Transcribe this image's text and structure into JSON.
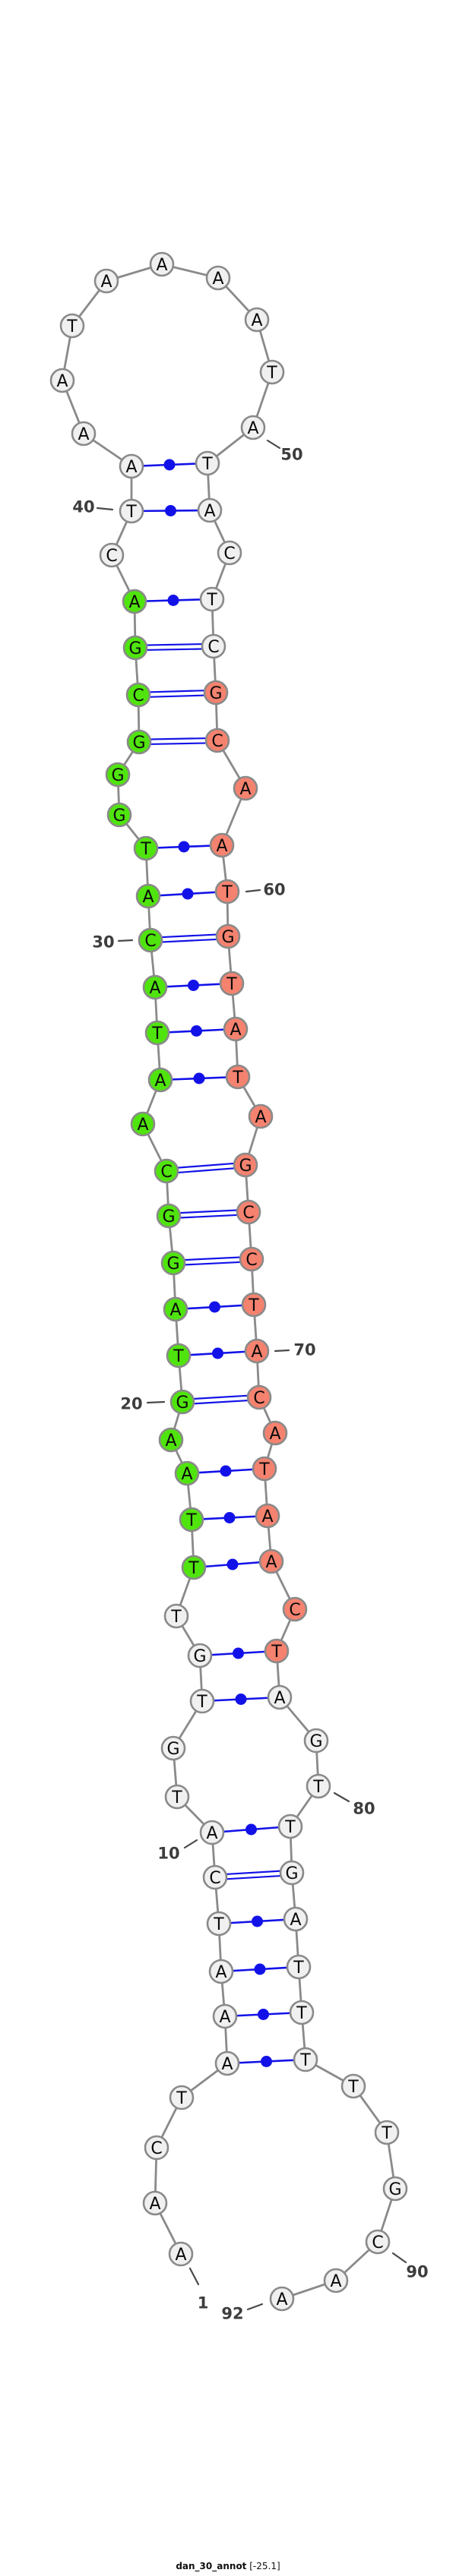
{
  "title": {
    "name": "dan_30_annot",
    "energy": "[-25.1]"
  },
  "colors": {
    "plain": "#f0f0f0",
    "green": "#50e40e",
    "red": "#f4826f",
    "outline": "#8a8a8a",
    "backbone": "#8a8a8a",
    "pair_blue": "#1212e8",
    "label": "#3d3d3d",
    "tick": "#4a4a4a"
  },
  "structure": {
    "sequence": "AACTAAATCATGTGTTTAAGTAGGCAATACATGGGCGACTAAATAAAATATACTCGCAATGTATAGCCTACATAACTAGTTGATTTTTGCAA",
    "nucleotides": [
      [
        1,
        "A",
        238,
        2968,
        "plain"
      ],
      [
        2,
        "A",
        204,
        2901,
        "plain"
      ],
      [
        3,
        "C",
        206,
        2828,
        "plain"
      ],
      [
        4,
        "T",
        239,
        2762,
        "plain"
      ],
      [
        5,
        "A",
        299,
        2717,
        "plain"
      ],
      [
        6,
        "A",
        296,
        2655,
        "plain"
      ],
      [
        7,
        "A",
        291,
        2596,
        "plain"
      ],
      [
        8,
        "T",
        288,
        2533,
        "plain"
      ],
      [
        9,
        "C",
        283,
        2472,
        "plain"
      ],
      [
        10,
        "A",
        279,
        2413,
        "plain"
      ],
      [
        11,
        "T",
        233,
        2366,
        "plain"
      ],
      [
        12,
        "G",
        228,
        2302,
        "plain"
      ],
      [
        13,
        "T",
        266,
        2240,
        "plain"
      ],
      [
        14,
        "G",
        263,
        2180,
        "plain"
      ],
      [
        15,
        "T",
        232,
        2128,
        "plain"
      ],
      [
        16,
        "T",
        255,
        2064,
        "green"
      ],
      [
        17,
        "T",
        252,
        2001,
        "green"
      ],
      [
        18,
        "A",
        246,
        1940,
        "green"
      ],
      [
        19,
        "A",
        225,
        1896,
        "green"
      ],
      [
        20,
        "G",
        240,
        1846,
        "green"
      ],
      [
        21,
        "T",
        235,
        1785,
        "green"
      ],
      [
        22,
        "A",
        231,
        1724,
        "green"
      ],
      [
        23,
        "G",
        228,
        1663,
        "green"
      ],
      [
        24,
        "G",
        222,
        1601,
        "green"
      ],
      [
        25,
        "C",
        219,
        1542,
        "green"
      ],
      [
        26,
        "A",
        188,
        1480,
        "green"
      ],
      [
        27,
        "A",
        211,
        1422,
        "green"
      ],
      [
        28,
        "T",
        207,
        1360,
        "green"
      ],
      [
        29,
        "A",
        204,
        1300,
        "green"
      ],
      [
        30,
        "C",
        198,
        1238,
        "green"
      ],
      [
        31,
        "A",
        195,
        1180,
        "green"
      ],
      [
        32,
        "T",
        192,
        1117,
        "green"
      ],
      [
        33,
        "G",
        157,
        1073,
        "green"
      ],
      [
        34,
        "G",
        155,
        1020,
        "green"
      ],
      [
        35,
        "G",
        183,
        977,
        "green"
      ],
      [
        36,
        "C",
        182,
        915,
        "green"
      ],
      [
        37,
        "G",
        178,
        853,
        "green"
      ],
      [
        38,
        "A",
        177,
        792,
        "green"
      ],
      [
        39,
        "C",
        147,
        731,
        "plain"
      ],
      [
        40,
        "T",
        173,
        673,
        "plain"
      ],
      [
        41,
        "A",
        173,
        614,
        "plain"
      ],
      [
        42,
        "A",
        110,
        571,
        "plain"
      ],
      [
        43,
        "A",
        82,
        501,
        "plain"
      ],
      [
        44,
        "T",
        95,
        429,
        "plain"
      ],
      [
        45,
        "A",
        140,
        370,
        "plain"
      ],
      [
        46,
        "A",
        213,
        348,
        "plain"
      ],
      [
        47,
        "A",
        287,
        366,
        "plain"
      ],
      [
        48,
        "A",
        338,
        421,
        "plain"
      ],
      [
        49,
        "T",
        358,
        490,
        "plain"
      ],
      [
        50,
        "A",
        333,
        563,
        "plain"
      ],
      [
        51,
        "T",
        273,
        610,
        "plain"
      ],
      [
        52,
        "A",
        276,
        672,
        "plain"
      ],
      [
        53,
        "C",
        302,
        728,
        "plain"
      ],
      [
        54,
        "T",
        279,
        789,
        "plain"
      ],
      [
        55,
        "C",
        281,
        851,
        "plain"
      ],
      [
        56,
        "G",
        284,
        912,
        "red"
      ],
      [
        57,
        "C",
        286,
        975,
        "red"
      ],
      [
        58,
        "A",
        323,
        1038,
        "red"
      ],
      [
        59,
        "A",
        292,
        1113,
        "red"
      ],
      [
        60,
        "T",
        299,
        1174,
        "red"
      ],
      [
        61,
        "G",
        300,
        1233,
        "red"
      ],
      [
        62,
        "T",
        305,
        1295,
        "red"
      ],
      [
        63,
        "A",
        310,
        1355,
        "red"
      ],
      [
        64,
        "T",
        313,
        1418,
        "red"
      ],
      [
        65,
        "A",
        343,
        1470,
        "red"
      ],
      [
        66,
        "G",
        323,
        1534,
        "red"
      ],
      [
        67,
        "C",
        327,
        1596,
        "red"
      ],
      [
        68,
        "C",
        331,
        1658,
        "red"
      ],
      [
        69,
        "T",
        334,
        1718,
        "red"
      ],
      [
        70,
        "A",
        338,
        1779,
        "red"
      ],
      [
        71,
        "C",
        341,
        1840,
        "red"
      ],
      [
        72,
        "A",
        362,
        1887,
        "red"
      ],
      [
        73,
        "T",
        348,
        1934,
        "red"
      ],
      [
        74,
        "A",
        352,
        1996,
        "red"
      ],
      [
        75,
        "A",
        357,
        2056,
        "red"
      ],
      [
        76,
        "C",
        388,
        2119,
        "red"
      ],
      [
        77,
        "T",
        364,
        2174,
        "red"
      ],
      [
        78,
        "A",
        368,
        2235,
        "plain"
      ],
      [
        79,
        "G",
        416,
        2292,
        "plain"
      ],
      [
        80,
        "T",
        419,
        2352,
        "plain"
      ],
      [
        81,
        "T",
        382,
        2405,
        "plain"
      ],
      [
        82,
        "G",
        384,
        2466,
        "plain"
      ],
      [
        83,
        "A",
        389,
        2527,
        "plain"
      ],
      [
        84,
        "T",
        393,
        2590,
        "plain"
      ],
      [
        85,
        "T",
        397,
        2650,
        "plain"
      ],
      [
        86,
        "T",
        402,
        2712,
        "plain"
      ],
      [
        87,
        "T",
        465,
        2747,
        "plain"
      ],
      [
        88,
        "T",
        509,
        2808,
        "plain"
      ],
      [
        89,
        "G",
        520,
        2882,
        "plain"
      ],
      [
        90,
        "C",
        497,
        2952,
        "plain"
      ],
      [
        91,
        "A",
        442,
        3003,
        "plain"
      ],
      [
        92,
        "A",
        371,
        3027,
        "plain"
      ]
    ],
    "pairs": [
      [
        5,
        86,
        "dot"
      ],
      [
        6,
        85,
        "dot"
      ],
      [
        7,
        84,
        "dot"
      ],
      [
        8,
        83,
        "dot"
      ],
      [
        9,
        82,
        "dbl"
      ],
      [
        10,
        81,
        "dot"
      ],
      [
        13,
        78,
        "dot"
      ],
      [
        14,
        77,
        "dot"
      ],
      [
        16,
        75,
        "dot"
      ],
      [
        17,
        74,
        "dot"
      ],
      [
        18,
        73,
        "dot"
      ],
      [
        20,
        71,
        "dbl"
      ],
      [
        21,
        70,
        "dot"
      ],
      [
        22,
        69,
        "dot"
      ],
      [
        23,
        68,
        "dbl"
      ],
      [
        24,
        67,
        "dbl"
      ],
      [
        25,
        66,
        "dbl"
      ],
      [
        27,
        64,
        "dot"
      ],
      [
        28,
        63,
        "dot"
      ],
      [
        29,
        62,
        "dot"
      ],
      [
        30,
        61,
        "dbl"
      ],
      [
        31,
        60,
        "dot"
      ],
      [
        32,
        59,
        "dot"
      ],
      [
        35,
        57,
        "dbl"
      ],
      [
        36,
        56,
        "dbl"
      ],
      [
        37,
        55,
        "dbl"
      ],
      [
        38,
        54,
        "dot"
      ],
      [
        40,
        52,
        "dot"
      ],
      [
        41,
        51,
        "dot"
      ]
    ],
    "labels": [
      [
        "1",
        267,
        3032,
        250,
        2987,
        261,
        3008
      ],
      [
        "10",
        222,
        2440,
        243,
        2433,
        259,
        2423
      ],
      [
        "20",
        173,
        1848,
        194,
        1847,
        216,
        1846
      ],
      [
        "30",
        136,
        1240,
        156,
        1239,
        174,
        1238
      ],
      [
        "40",
        110,
        667,
        128,
        669,
        148,
        671
      ],
      [
        "50",
        384,
        598,
        352,
        580,
        368,
        590
      ],
      [
        "60",
        361,
        1171,
        324,
        1174,
        342,
        1172
      ],
      [
        "70",
        401,
        1777,
        362,
        1779,
        380,
        1778
      ],
      [
        "80",
        479,
        2381,
        440,
        2361,
        459,
        2372
      ],
      [
        "90",
        549,
        2991,
        517,
        2967,
        534,
        2979
      ],
      [
        "92",
        306,
        3046,
        345,
        3034,
        326,
        3041
      ]
    ]
  }
}
